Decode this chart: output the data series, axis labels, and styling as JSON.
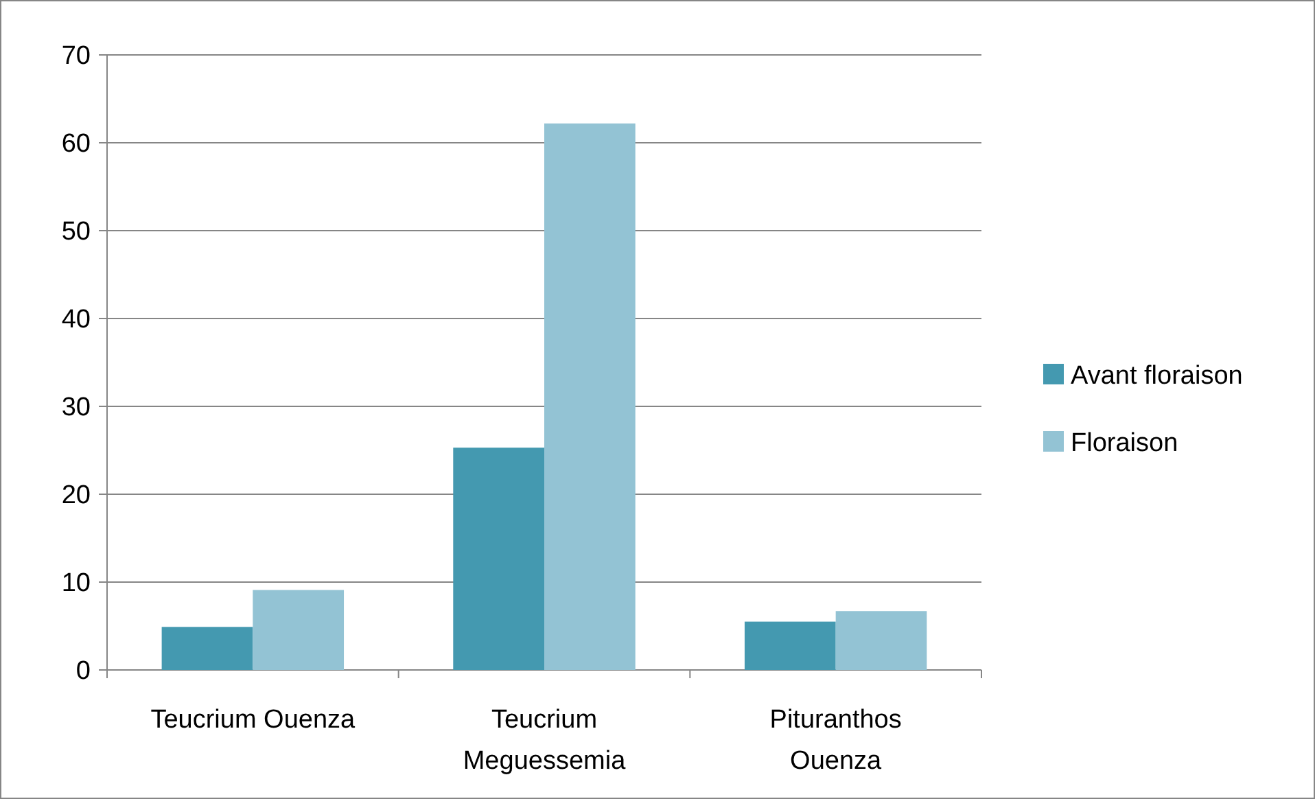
{
  "chart_data": {
    "type": "bar",
    "categories": [
      "Teucrium Ouenza",
      "Teucrium Meguessemia",
      "Pituranthos Ouenza"
    ],
    "series": [
      {
        "name": "Avant floraison",
        "color": "#4499b0",
        "values": [
          4.9,
          25.3,
          5.5
        ]
      },
      {
        "name": "Floraison",
        "color": "#93c3d4",
        "values": [
          9.1,
          62.2,
          6.7
        ]
      }
    ],
    "ylim": [
      0,
      70
    ],
    "yticks": [
      0,
      10,
      20,
      30,
      40,
      50,
      60,
      70
    ],
    "grid": "y",
    "legend": "right"
  }
}
